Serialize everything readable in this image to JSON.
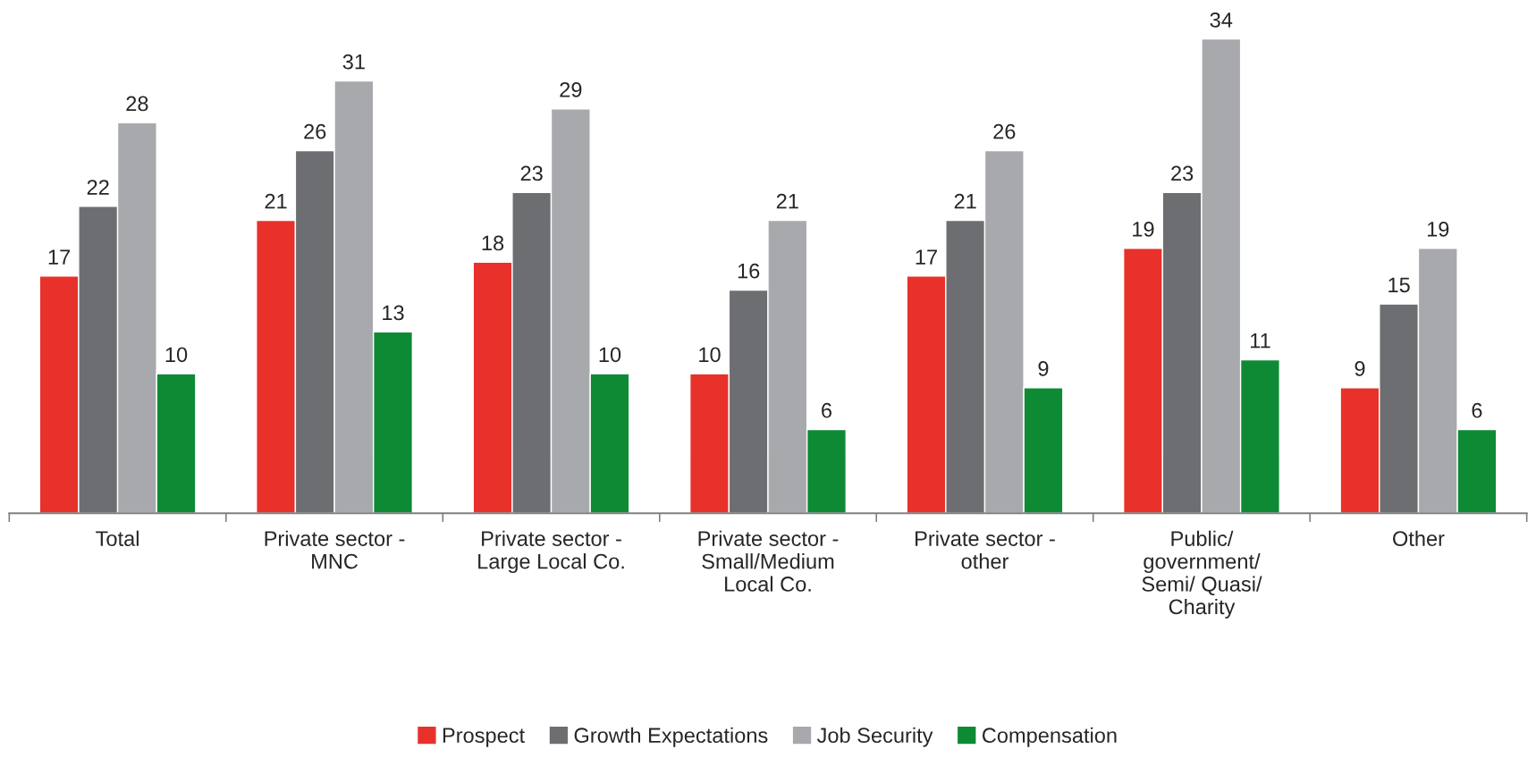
{
  "chart_data": {
    "type": "bar",
    "categories": [
      "Total",
      "Private sector -\nMNC",
      "Private sector -\nLarge Local Co.",
      "Private sector -\nSmall/Medium\nLocal Co.",
      "Private sector -\nother",
      "Public/\ngovernment/\nSemi/ Quasi/\nCharity",
      "Other"
    ],
    "series": [
      {
        "name": "Prospect",
        "color": "#e8312a",
        "values": [
          17,
          21,
          18,
          10,
          17,
          19,
          9
        ]
      },
      {
        "name": "Growth Expectations",
        "color": "#6d6e71",
        "values": [
          22,
          26,
          23,
          16,
          21,
          23,
          15
        ]
      },
      {
        "name": "Job Security",
        "color": "#a7a9ac",
        "values": [
          28,
          31,
          29,
          21,
          26,
          34,
          19
        ]
      },
      {
        "name": "Compensation",
        "color": "#0e8a35",
        "values": [
          10,
          13,
          10,
          6,
          9,
          11,
          6
        ]
      }
    ],
    "data_labels": true,
    "legend": "bottom",
    "grid": false,
    "tick_labels": "x"
  }
}
